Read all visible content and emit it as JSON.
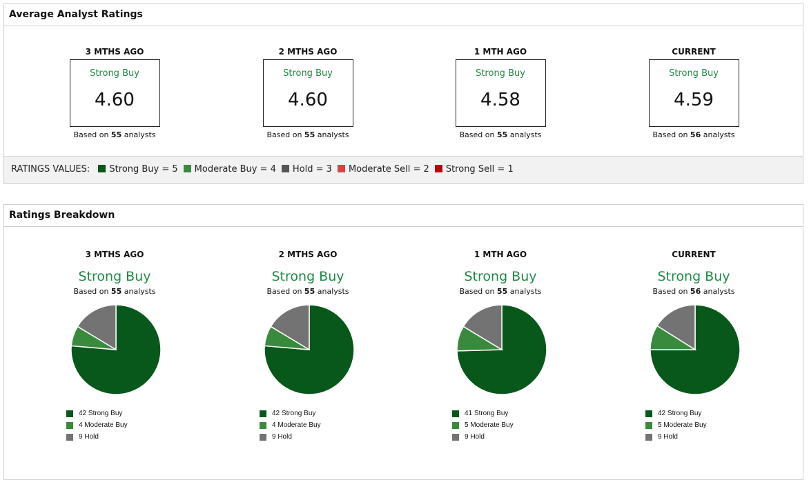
{
  "average": {
    "title": "Average Analyst Ratings",
    "periods": [
      {
        "label": "3 MTHS AGO",
        "rating": "Strong Buy",
        "value": "4.60",
        "based_pre": "Based on",
        "count": "55",
        "based_post": "analysts"
      },
      {
        "label": "2 MTHS AGO",
        "rating": "Strong Buy",
        "value": "4.60",
        "based_pre": "Based on",
        "count": "55",
        "based_post": "analysts"
      },
      {
        "label": "1 MTH AGO",
        "rating": "Strong Buy",
        "value": "4.58",
        "based_pre": "Based on",
        "count": "55",
        "based_post": "analysts"
      },
      {
        "label": "CURRENT",
        "rating": "Strong Buy",
        "value": "4.59",
        "based_pre": "Based on",
        "count": "56",
        "based_post": "analysts"
      }
    ],
    "legend_label": "RATINGS VALUES:",
    "legend": [
      {
        "label": "Strong Buy = 5",
        "color": "#07581a"
      },
      {
        "label": "Moderate Buy = 4",
        "color": "#3a8a3e"
      },
      {
        "label": "Hold = 3",
        "color": "#555555"
      },
      {
        "label": "Moderate Sell = 2",
        "color": "#d84444"
      },
      {
        "label": "Strong Sell = 1",
        "color": "#c00000"
      }
    ]
  },
  "breakdown": {
    "title": "Ratings Breakdown",
    "periods": [
      {
        "label": "3 MTHS AGO",
        "rating": "Strong Buy",
        "based_pre": "Based on",
        "count": "55",
        "based_post": "analysts",
        "items": [
          {
            "n": 42,
            "label": "42 Strong Buy"
          },
          {
            "n": 4,
            "label": "4 Moderate Buy"
          },
          {
            "n": 9,
            "label": "9 Hold"
          }
        ]
      },
      {
        "label": "2 MTHS AGO",
        "rating": "Strong Buy",
        "based_pre": "Based on",
        "count": "55",
        "based_post": "analysts",
        "items": [
          {
            "n": 42,
            "label": "42 Strong Buy"
          },
          {
            "n": 4,
            "label": "4 Moderate Buy"
          },
          {
            "n": 9,
            "label": "9 Hold"
          }
        ]
      },
      {
        "label": "1 MTH AGO",
        "rating": "Strong Buy",
        "based_pre": "Based on",
        "count": "55",
        "based_post": "analysts",
        "items": [
          {
            "n": 41,
            "label": "41 Strong Buy"
          },
          {
            "n": 5,
            "label": "5 Moderate Buy"
          },
          {
            "n": 9,
            "label": "9 Hold"
          }
        ]
      },
      {
        "label": "CURRENT",
        "rating": "Strong Buy",
        "based_pre": "Based on",
        "count": "56",
        "based_post": "analysts",
        "items": [
          {
            "n": 42,
            "label": "42 Strong Buy"
          },
          {
            "n": 5,
            "label": "5 Moderate Buy"
          },
          {
            "n": 9,
            "label": "9 Hold"
          }
        ]
      }
    ],
    "colors": [
      "#07581a",
      "#3a8a3e",
      "#737373"
    ]
  }
}
